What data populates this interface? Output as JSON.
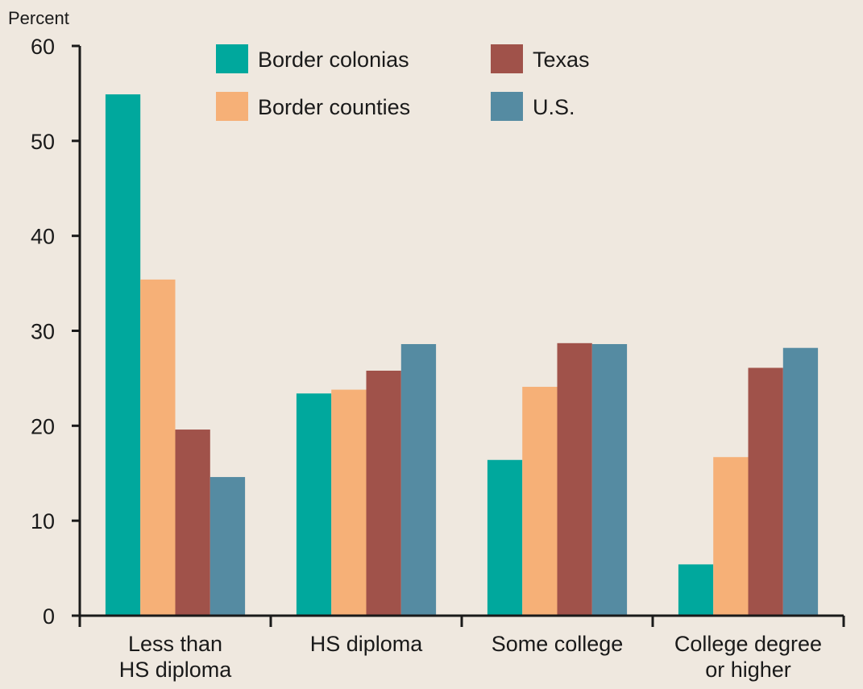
{
  "chart_data": {
    "type": "bar",
    "ylabel": "Percent",
    "xlabel": "",
    "ylim": [
      0,
      60
    ],
    "yticks": [
      0,
      10,
      20,
      30,
      40,
      50,
      60
    ],
    "categories": [
      [
        "Less than",
        "HS diploma"
      ],
      [
        "HS diploma"
      ],
      [
        "Some college"
      ],
      [
        "College degree",
        "or higher"
      ]
    ],
    "series": [
      {
        "name": "Border colonias",
        "color": "#00a89d",
        "values": [
          54.9,
          23.4,
          16.4,
          5.4
        ]
      },
      {
        "name": "Border counties",
        "color": "#f6b077",
        "values": [
          35.4,
          23.8,
          24.1,
          16.7
        ]
      },
      {
        "name": "Texas",
        "color": "#a0524a",
        "values": [
          19.6,
          25.8,
          28.7,
          26.1
        ]
      },
      {
        "name": "U.S.",
        "color": "#558ba2",
        "values": [
          14.6,
          28.6,
          28.6,
          28.2
        ]
      }
    ],
    "legend_position": "top",
    "grid": false
  }
}
